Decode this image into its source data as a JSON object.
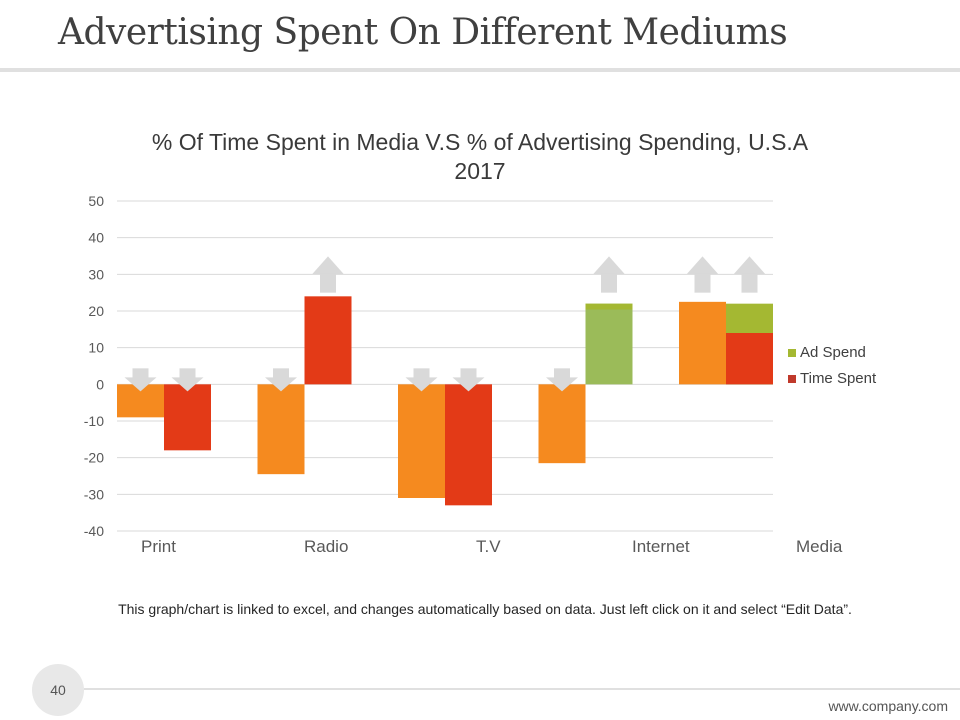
{
  "slide": {
    "title": "Advertising Spent On Different Mediums",
    "page_number": "40",
    "website": "www.company.com",
    "note": "This graph/chart is linked to excel, and changes automatically based on data. Just left click on it and select “Edit Data”."
  },
  "chart_data": {
    "type": "bar",
    "title": "% Of Time Spent in Media V.S % of Advertising Spending, U.S.A 2017",
    "categories": [
      "Print",
      "Radio",
      "T.V",
      "Internet",
      "Media"
    ],
    "series": [
      {
        "name": "Ad Spend",
        "color": "#9BBB59",
        "values": [
          -9,
          -24.5,
          -31,
          -21.5,
          22.5
        ]
      },
      {
        "name": "Time Spent",
        "color": "#E33A17",
        "values": [
          -18,
          24,
          -33,
          22,
          14
        ]
      }
    ],
    "bar_colors": {
      "first_bar": "#F58A1F",
      "second_bar": "#E33A17",
      "positive_internet": "#9BBB59",
      "media_stack_top": "#A4B832",
      "media_stack_top_value": 22
    },
    "yticks": [
      "50",
      "40",
      "30",
      "20",
      "10",
      "0",
      "-10",
      "-20",
      "-30",
      "-40"
    ],
    "ylim": [
      -40,
      50
    ],
    "grid": true,
    "legend": [
      {
        "label": "Ad Spend",
        "color": "#A4B832"
      },
      {
        "label": "Time Spent",
        "color": "#C0392B"
      }
    ],
    "legend_position": "right"
  }
}
